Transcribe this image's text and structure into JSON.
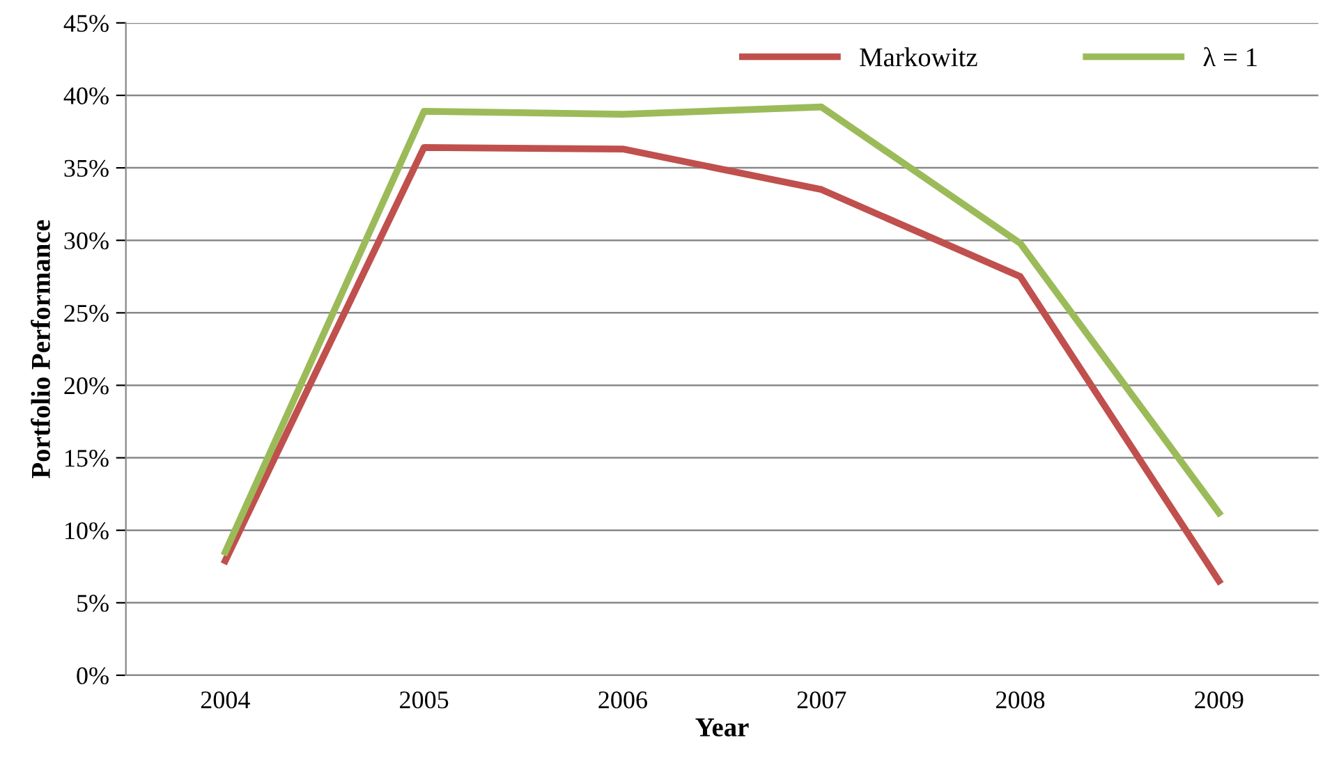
{
  "chart_data": {
    "type": "line",
    "xlabel": "Year",
    "ylabel": "Portfolio Performance",
    "categories": [
      "2004",
      "2005",
      "2006",
      "2007",
      "2008",
      "2009"
    ],
    "series": [
      {
        "name": "Markowitz",
        "color": "#c0504d",
        "values": [
          7.9,
          36.4,
          36.3,
          33.5,
          27.5,
          6.5
        ]
      },
      {
        "name": "λ = 1",
        "color": "#9bbb59",
        "values": [
          8.5,
          38.9,
          38.7,
          39.2,
          29.8,
          11.2
        ]
      }
    ],
    "ylim": [
      0,
      45
    ],
    "yticks": [
      {
        "value": 0,
        "label": "0%"
      },
      {
        "value": 5,
        "label": "5%"
      },
      {
        "value": 10,
        "label": "10%"
      },
      {
        "value": 15,
        "label": "15%"
      },
      {
        "value": 20,
        "label": "20%"
      },
      {
        "value": 25,
        "label": "25%"
      },
      {
        "value": 30,
        "label": "30%"
      },
      {
        "value": 35,
        "label": "35%"
      },
      {
        "value": 40,
        "label": "40%"
      },
      {
        "value": 45,
        "label": "45%"
      }
    ],
    "grid": "y",
    "legend": "top right",
    "marker": "none",
    "line_style": "solid"
  }
}
